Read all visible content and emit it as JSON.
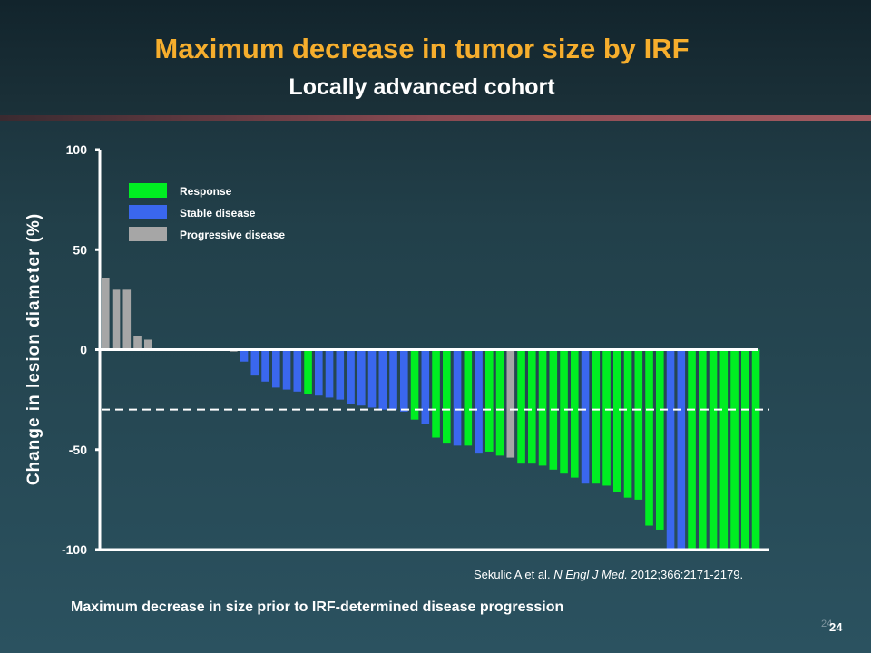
{
  "slide": {
    "title": "Maximum decrease in tumor size by IRF",
    "subtitle": "Locally advanced cohort",
    "citation_authors": "Sekulic A et al.",
    "citation_journal": "N Engl J Med.",
    "citation_ref": "2012;366:2171-2179.",
    "page_number": "24",
    "page_number_ghost": "24"
  },
  "colors": {
    "response": "#00ee22",
    "stable": "#3a67ee",
    "progressive": "#a6a6a6",
    "title": "#f6ae2d"
  },
  "chart_data": {
    "type": "bar",
    "ylabel": "Change in lesion diameter (%)",
    "xlabel": "Maximum decrease in size prior to IRF-determined disease progression",
    "ylim": [
      -100,
      100
    ],
    "yticks": [
      100,
      50,
      0,
      -50,
      -100
    ],
    "threshold_line": -30,
    "legend": {
      "placement": "top-left",
      "entries": [
        {
          "label": "Response",
          "color_key": "response"
        },
        {
          "label": "Stable disease",
          "color_key": "stable"
        },
        {
          "label": "Progressive disease",
          "color_key": "progressive"
        }
      ]
    },
    "series": [
      {
        "key": "progressive",
        "name": "Progressive disease"
      },
      {
        "key": "stable",
        "name": "Stable disease"
      },
      {
        "key": "response",
        "name": "Response"
      }
    ],
    "bars": [
      {
        "v": 36,
        "c": "progressive"
      },
      {
        "v": 30,
        "c": "progressive"
      },
      {
        "v": 30,
        "c": "progressive"
      },
      {
        "v": 7,
        "c": "progressive"
      },
      {
        "v": 5,
        "c": "progressive"
      },
      {
        "v": 0,
        "c": "progressive"
      },
      {
        "v": 0,
        "c": "progressive"
      },
      {
        "v": 0,
        "c": "progressive"
      },
      {
        "v": 0,
        "c": "progressive"
      },
      {
        "v": 0,
        "c": "progressive"
      },
      {
        "v": 0,
        "c": "progressive"
      },
      {
        "v": 0,
        "c": "progressive"
      },
      {
        "v": -1,
        "c": "progressive"
      },
      {
        "v": -6,
        "c": "stable"
      },
      {
        "v": -13,
        "c": "stable"
      },
      {
        "v": -16,
        "c": "stable"
      },
      {
        "v": -19,
        "c": "stable"
      },
      {
        "v": -20,
        "c": "stable"
      },
      {
        "v": -21,
        "c": "stable"
      },
      {
        "v": -22,
        "c": "response"
      },
      {
        "v": -23,
        "c": "stable"
      },
      {
        "v": -24,
        "c": "stable"
      },
      {
        "v": -25,
        "c": "stable"
      },
      {
        "v": -27,
        "c": "stable"
      },
      {
        "v": -28,
        "c": "stable"
      },
      {
        "v": -29,
        "c": "stable"
      },
      {
        "v": -30,
        "c": "stable"
      },
      {
        "v": -30,
        "c": "stable"
      },
      {
        "v": -31,
        "c": "stable"
      },
      {
        "v": -35,
        "c": "response"
      },
      {
        "v": -37,
        "c": "stable"
      },
      {
        "v": -44,
        "c": "response"
      },
      {
        "v": -47,
        "c": "response"
      },
      {
        "v": -48,
        "c": "stable"
      },
      {
        "v": -48,
        "c": "response"
      },
      {
        "v": -52,
        "c": "stable"
      },
      {
        "v": -51,
        "c": "response"
      },
      {
        "v": -53,
        "c": "response"
      },
      {
        "v": -54,
        "c": "progressive"
      },
      {
        "v": -57,
        "c": "response"
      },
      {
        "v": -57,
        "c": "response"
      },
      {
        "v": -58,
        "c": "response"
      },
      {
        "v": -60,
        "c": "response"
      },
      {
        "v": -62,
        "c": "response"
      },
      {
        "v": -64,
        "c": "response"
      },
      {
        "v": -67,
        "c": "stable"
      },
      {
        "v": -67,
        "c": "response"
      },
      {
        "v": -68,
        "c": "response"
      },
      {
        "v": -71,
        "c": "response"
      },
      {
        "v": -74,
        "c": "response"
      },
      {
        "v": -75,
        "c": "response"
      },
      {
        "v": -88,
        "c": "response"
      },
      {
        "v": -90,
        "c": "response"
      },
      {
        "v": -100,
        "c": "stable"
      },
      {
        "v": -100,
        "c": "stable"
      },
      {
        "v": -100,
        "c": "response"
      },
      {
        "v": -100,
        "c": "response"
      },
      {
        "v": -100,
        "c": "response"
      },
      {
        "v": -100,
        "c": "response"
      },
      {
        "v": -100,
        "c": "response"
      },
      {
        "v": -100,
        "c": "response"
      },
      {
        "v": -100,
        "c": "response"
      }
    ]
  }
}
